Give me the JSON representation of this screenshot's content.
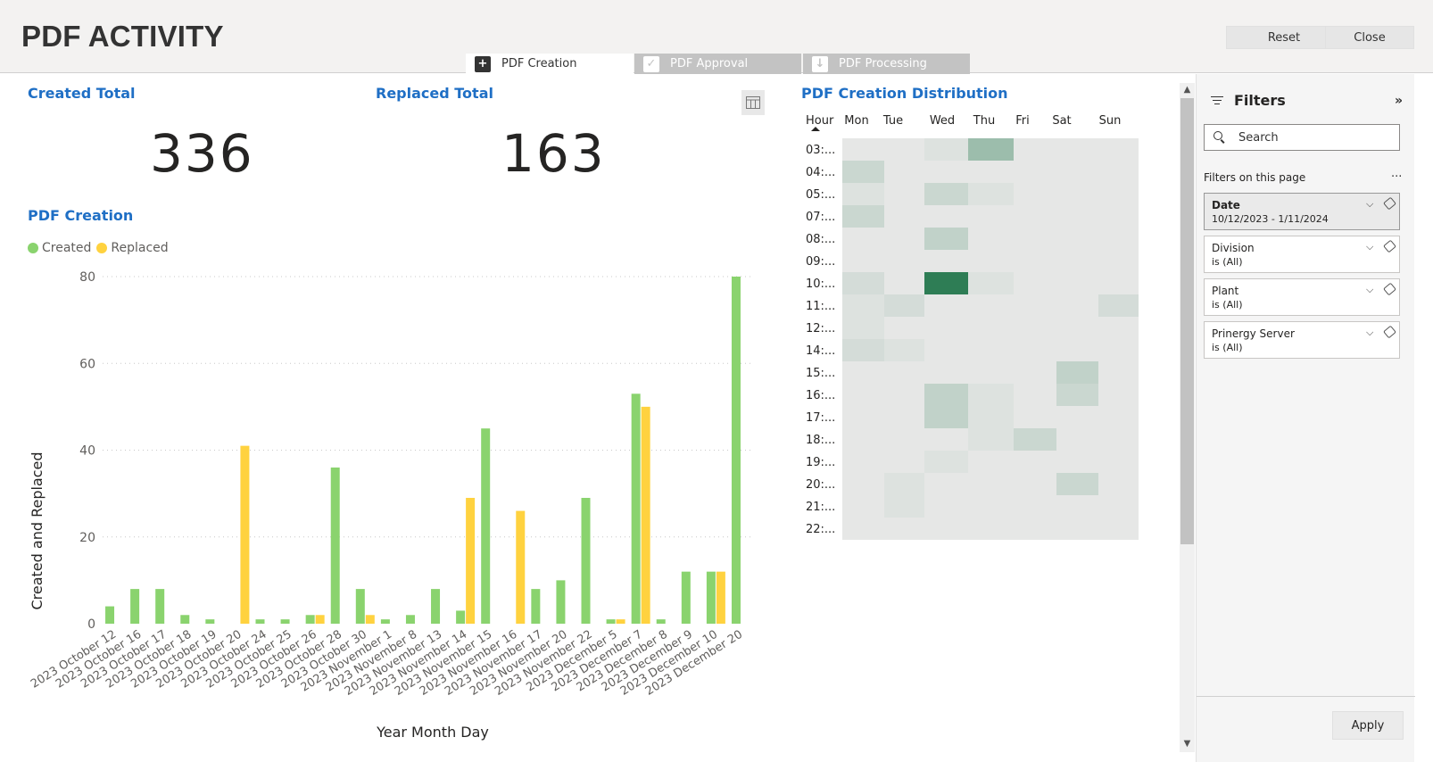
{
  "header": {
    "title": "PDF ACTIVITY",
    "reset_label": "Reset",
    "close_label": "Close"
  },
  "tabs": [
    {
      "label": "PDF Creation",
      "icon": "plus-document-icon",
      "active": true
    },
    {
      "label": "PDF Approval",
      "icon": "check-document-icon",
      "active": false
    },
    {
      "label": "PDF Processing",
      "icon": "download-document-icon",
      "active": false
    }
  ],
  "kpis": {
    "created": {
      "label": "Created Total",
      "value": "336"
    },
    "replaced": {
      "label": "Replaced Total",
      "value": "163"
    }
  },
  "chart_data": [
    {
      "type": "bar",
      "title": "PDF Creation",
      "xlabel": "Year Month Day",
      "ylabel": "Created and Replaced",
      "ylim": [
        0,
        80
      ],
      "yticks": [
        0,
        20,
        40,
        60,
        80
      ],
      "legend": "top-left",
      "grid": true,
      "categories": [
        "2023 October 12",
        "2023 October 16",
        "2023 October 17",
        "2023 October 18",
        "2023 October 19",
        "2023 October 20",
        "2023 October 24",
        "2023 October 25",
        "2023 October 26",
        "2023 October 28",
        "2023 October 30",
        "2023 November 1",
        "2023 November 8",
        "2023 November 13",
        "2023 November 14",
        "2023 November 15",
        "2023 November 16",
        "2023 November 17",
        "2023 November 20",
        "2023 November 22",
        "2023 December 5",
        "2023 December 7",
        "2023 December 8",
        "2023 December 9",
        "2023 December 10",
        "2023 December 20"
      ],
      "series": [
        {
          "name": "Created",
          "color": "#8ad36e",
          "values": [
            4,
            8,
            8,
            2,
            1,
            0,
            1,
            1,
            2,
            36,
            8,
            1,
            2,
            8,
            3,
            45,
            0,
            8,
            10,
            29,
            1,
            53,
            1,
            12,
            12,
            80
          ]
        },
        {
          "name": "Replaced",
          "color": "#ffd23f",
          "values": [
            0,
            0,
            0,
            0,
            0,
            41,
            0,
            0,
            2,
            0,
            2,
            0,
            0,
            0,
            29,
            0,
            26,
            0,
            0,
            0,
            1,
            50,
            0,
            0,
            12,
            0
          ]
        }
      ]
    },
    {
      "type": "heatmap",
      "title": "PDF Creation Distribution",
      "row_header": "Hour",
      "columns": [
        "Mon",
        "Tue",
        "Wed",
        "Thu",
        "Fri",
        "Sat",
        "Sun"
      ],
      "rows": [
        "03:...",
        "04:...",
        "05:...",
        "07:...",
        "08:...",
        "09:...",
        "10:...",
        "11:...",
        "12:...",
        "14:...",
        "15:...",
        "16:...",
        "17:...",
        "18:...",
        "19:...",
        "20:...",
        "21:...",
        "22:..."
      ],
      "values": [
        [
          0,
          0,
          1,
          8,
          0,
          0,
          0
        ],
        [
          3,
          0,
          0,
          0,
          0,
          0,
          0
        ],
        [
          1,
          0,
          3,
          1,
          0,
          0,
          0
        ],
        [
          3,
          0,
          0,
          0,
          0,
          0,
          0
        ],
        [
          0,
          0,
          4,
          0,
          0,
          0,
          0
        ],
        [
          0,
          0,
          0,
          0,
          0,
          0,
          0
        ],
        [
          2,
          0,
          20,
          1,
          0,
          0,
          0
        ],
        [
          1,
          2,
          0,
          0,
          0,
          0,
          2
        ],
        [
          1,
          0,
          0,
          0,
          0,
          0,
          0
        ],
        [
          2,
          1,
          0,
          0,
          0,
          0,
          0
        ],
        [
          0,
          0,
          0,
          0,
          0,
          4,
          0
        ],
        [
          0,
          0,
          4,
          1,
          0,
          3,
          0
        ],
        [
          0,
          0,
          4,
          1,
          0,
          0,
          0
        ],
        [
          0,
          0,
          0,
          1,
          3,
          0,
          0
        ],
        [
          0,
          0,
          1,
          0,
          0,
          0,
          0
        ],
        [
          0,
          1,
          0,
          0,
          0,
          3,
          0
        ],
        [
          0,
          1,
          0,
          0,
          0,
          0,
          0
        ],
        [
          0,
          0,
          0,
          0,
          0,
          0,
          0
        ]
      ],
      "color_low": "#e6e7e6",
      "color_high": "#2e7d55"
    }
  ],
  "filters": {
    "title": "Filters",
    "search_placeholder": "Search",
    "section_label": "Filters on this page",
    "more_label": "...",
    "items": [
      {
        "name": "Date",
        "value": "10/12/2023 - 1/11/2024",
        "active": true
      },
      {
        "name": "Division",
        "value": "is (All)",
        "active": false
      },
      {
        "name": "Plant",
        "value": "is (All)",
        "active": false
      },
      {
        "name": "Prinergy Server",
        "value": "is (All)",
        "active": false
      }
    ],
    "apply_label": "Apply"
  }
}
